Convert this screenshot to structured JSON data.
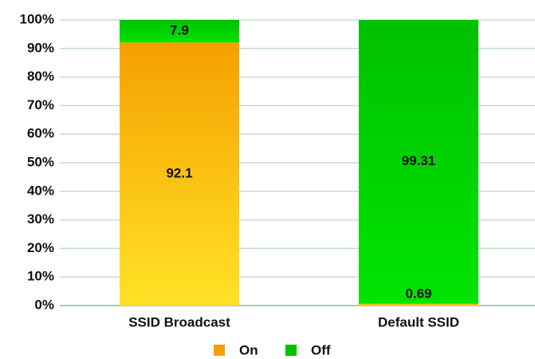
{
  "chart_data": {
    "type": "stacked_bar",
    "categories": [
      "SSID Broadcast",
      "Default SSID"
    ],
    "series": [
      {
        "name": "On",
        "color": "#f5a000",
        "values": [
          92.1,
          0.69
        ]
      },
      {
        "name": "Off",
        "color": "#00c000",
        "values": [
          7.9,
          99.31
        ]
      }
    ],
    "ylim": [
      0,
      100
    ],
    "yticks": [
      {
        "value": 0,
        "label": "0%"
      },
      {
        "value": 10,
        "label": "10%"
      },
      {
        "value": 20,
        "label": "20%"
      },
      {
        "value": 30,
        "label": "30%"
      },
      {
        "value": 40,
        "label": "40%"
      },
      {
        "value": 50,
        "label": "50%"
      },
      {
        "value": 60,
        "label": "60%"
      },
      {
        "value": 70,
        "label": "70%"
      },
      {
        "value": 80,
        "label": "80%"
      },
      {
        "value": 90,
        "label": "90%"
      },
      {
        "value": 100,
        "label": "100%"
      }
    ],
    "grid": true,
    "legend": "bottom"
  }
}
